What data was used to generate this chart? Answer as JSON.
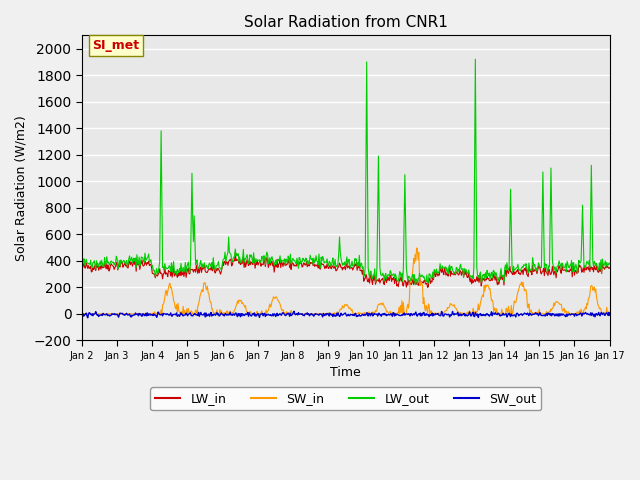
{
  "title": "Solar Radiation from CNR1",
  "xlabel": "Time",
  "ylabel": "Solar Radiation (W/m2)",
  "ylim": [
    -200,
    2100
  ],
  "yticks": [
    -200,
    0,
    200,
    400,
    600,
    800,
    1000,
    1200,
    1400,
    1600,
    1800,
    2000
  ],
  "xlim_days": [
    1,
    16
  ],
  "x_tick_labels": [
    "Jan 2",
    "Jan 3",
    "Jan 4",
    "Jan 5",
    "Jan 6",
    "Jan 7",
    "Jan 8",
    "Jan 9",
    "Jan 10",
    "Jan 11",
    "Jan 12",
    "Jan 13",
    "Jan 14",
    "Jan 15",
    "Jan 16",
    "Jan 17"
  ],
  "x_tick_positions": [
    1,
    2,
    3,
    4,
    5,
    6,
    7,
    8,
    9,
    10,
    11,
    12,
    13,
    14,
    15,
    16
  ],
  "colors": {
    "LW_in": "#cc0000",
    "SW_in": "#ff9900",
    "LW_out": "#00cc00",
    "SW_out": "#0000cc"
  },
  "background_color": "#e8e8e8",
  "grid_color": "#ffffff",
  "annotation_text": "SI_met",
  "annotation_color": "#cc0000",
  "annotation_bg": "#ffffcc",
  "annotation_border": "#888800"
}
